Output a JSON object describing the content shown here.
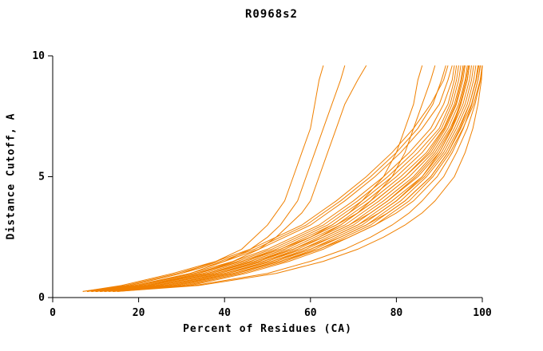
{
  "title": "R0968s2",
  "colors": {
    "line": "#f08000",
    "axis": "#000000",
    "background": "#ffffff"
  },
  "chart_data": {
    "type": "line",
    "title": "R0968s2",
    "xlabel": "Percent of Residues (CA)",
    "ylabel": "Distance Cutoff, A",
    "xlim": [
      0,
      100
    ],
    "ylim": [
      0,
      10
    ],
    "xticks": [
      0,
      20,
      40,
      60,
      80,
      100
    ],
    "yticks": [
      0,
      5,
      10
    ],
    "grid": false,
    "legend": "none",
    "line_color": "#f08000",
    "y_levels": [
      0.25,
      0.5,
      1,
      1.5,
      2,
      2.5,
      3,
      3.5,
      4,
      5,
      6,
      7,
      8,
      9,
      9.6
    ],
    "series_x": [
      [
        8,
        18,
        30,
        38,
        44,
        47,
        50,
        52,
        54,
        56,
        58,
        60,
        61,
        62,
        63
      ],
      [
        9,
        20,
        32,
        40,
        46,
        50,
        53,
        55,
        57,
        59,
        61,
        63,
        65,
        67,
        68
      ],
      [
        10,
        22,
        34,
        42,
        48,
        52,
        55,
        58,
        60,
        62,
        64,
        66,
        68,
        71,
        73
      ],
      [
        9,
        22,
        36,
        46,
        54,
        60,
        65,
        69,
        72,
        77,
        80,
        82,
        84,
        85,
        86
      ],
      [
        10,
        24,
        38,
        48,
        56,
        62,
        67,
        71,
        74,
        79,
        82,
        84,
        86,
        88,
        89
      ],
      [
        7,
        16,
        28,
        38,
        46,
        52,
        58,
        62,
        66,
        73,
        79,
        84,
        88,
        91,
        92
      ],
      [
        8,
        18,
        30,
        40,
        48,
        54,
        60,
        64,
        68,
        75,
        81,
        86,
        90,
        92,
        93
      ],
      [
        8,
        19,
        32,
        42,
        50,
        56,
        62,
        66,
        70,
        77,
        83,
        88,
        91,
        93,
        93.5
      ],
      [
        9,
        20,
        33,
        43,
        51,
        57,
        63,
        67,
        71,
        78,
        84,
        89,
        92,
        93.5,
        94
      ],
      [
        9,
        21,
        34,
        44,
        52,
        58,
        64,
        68,
        72,
        79,
        85,
        90,
        92.5,
        94,
        94.5
      ],
      [
        10,
        22,
        35,
        45,
        53,
        59,
        65,
        69,
        73,
        80,
        86,
        90.5,
        93,
        94.5,
        95
      ],
      [
        10,
        23,
        36,
        46,
        54,
        60,
        66,
        70,
        74,
        81,
        87,
        91,
        93.5,
        95,
        95.5
      ],
      [
        11,
        24,
        37,
        47,
        55,
        61,
        67,
        71,
        75,
        82,
        88,
        91.5,
        94,
        95.5,
        96
      ],
      [
        11,
        25,
        38,
        48,
        56,
        62,
        68,
        72,
        76,
        83,
        88.5,
        92,
        94.5,
        96,
        96.5
      ],
      [
        12,
        26,
        39,
        49,
        57,
        63,
        69,
        73,
        77,
        84,
        89,
        92.5,
        95,
        96.5,
        97
      ],
      [
        12,
        27,
        40,
        50,
        58,
        64,
        70,
        74,
        78,
        85,
        90,
        93,
        95.5,
        97,
        97.5
      ],
      [
        13,
        28,
        41,
        51,
        59,
        65,
        71,
        75,
        79,
        86,
        90.5,
        93.5,
        96,
        97.5,
        98
      ],
      [
        13,
        29,
        42,
        52,
        60,
        66,
        72,
        76,
        80,
        86.5,
        91,
        94,
        96.5,
        98,
        98.5
      ],
      [
        14,
        30,
        43,
        53,
        61,
        67,
        73,
        77,
        81,
        87,
        91.5,
        94.5,
        97,
        98.5,
        99
      ],
      [
        14,
        31,
        44,
        54,
        62,
        68,
        74,
        78,
        82,
        88,
        92,
        95,
        97.5,
        99,
        99.5
      ],
      [
        15,
        32,
        45,
        55,
        63,
        69,
        75,
        79,
        83,
        88.5,
        92.5,
        95.5,
        98,
        99.5,
        100
      ],
      [
        10,
        24,
        38,
        49,
        58,
        65,
        71,
        76,
        80,
        86,
        90,
        93,
        95,
        96.5,
        97
      ],
      [
        9,
        22,
        36,
        47,
        56,
        63,
        69,
        74,
        78,
        84.5,
        89.5,
        92.8,
        94.8,
        96.2,
        96.8
      ],
      [
        8,
        20,
        33,
        44,
        53,
        60,
        66,
        71,
        75,
        82,
        87.5,
        91.2,
        93.8,
        95.2,
        95.8
      ],
      [
        11,
        26,
        40,
        51,
        60,
        67,
        73,
        78,
        82,
        88,
        92,
        94.8,
        97,
        98.6,
        99.2
      ],
      [
        12,
        28,
        42,
        53,
        62,
        69,
        75,
        80,
        84,
        89.5,
        93,
        95.6,
        97.6,
        99,
        99.6
      ],
      [
        7,
        17,
        29,
        39,
        47,
        53,
        59,
        63,
        67,
        74,
        80,
        85,
        88.5,
        90.5,
        91.5
      ],
      [
        14,
        33,
        50,
        60,
        68,
        74,
        79,
        83,
        86,
        91,
        94,
        96.5,
        98.3,
        99.6,
        100
      ],
      [
        15,
        34,
        52,
        63,
        71,
        77,
        82,
        86,
        89,
        93.5,
        96,
        97.8,
        99,
        99.8,
        100
      ]
    ]
  }
}
